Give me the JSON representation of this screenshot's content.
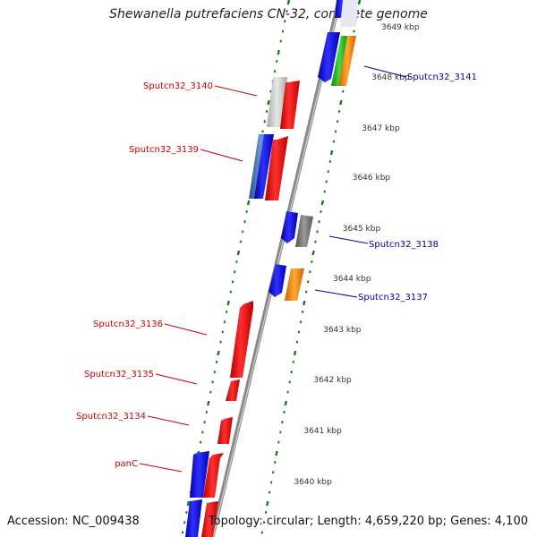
{
  "title": "Shewanella putrefaciens CN-32, complete genome",
  "footer": {
    "accession": "Accession: NC_009438",
    "summary": "Topology: circular; Length: 4,659,220 bp; Genes: 4,100"
  },
  "colors": {
    "forward_label": "#0000aa",
    "reverse_label": "#cc0000",
    "backbone": "#8a8a8a",
    "tick": "#1a7a1a",
    "cds_red": "#ee0000",
    "cds_blue": "#0000ee",
    "cds_grey": "#888888",
    "cds_orange": "#ff8c00",
    "cds_green": "#22bb22",
    "cds_lightgrey": "#c8c8c8"
  },
  "scale_labels": [
    "3649 kbp",
    "3648 kbp",
    "3647 kbp",
    "3646 kbp",
    "3645 kbp",
    "3644 kbp",
    "3643 kbp",
    "3642 kbp",
    "3641 kbp",
    "3640 kbp"
  ],
  "gene_labels": {
    "right": [
      "Sputcn32_3141",
      "Sputcn32_3138",
      "Sputcn32_3137"
    ],
    "left": [
      "Sputcn32_3140",
      "Sputcn32_3139",
      "Sputcn32_3136",
      "Sputcn32_3135",
      "Sputcn32_3134",
      "panC"
    ]
  }
}
